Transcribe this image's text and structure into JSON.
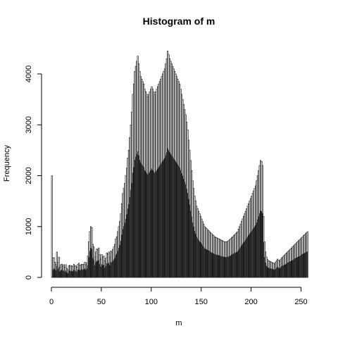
{
  "chart_data": {
    "type": "bar",
    "title": "Histogram of m",
    "xlabel": "m",
    "ylabel": "Frequency",
    "xlim": [
      0,
      256
    ],
    "ylim": [
      0,
      4500
    ],
    "bin_width": 1,
    "x_ticks": [
      0,
      50,
      100,
      150,
      200,
      250
    ],
    "y_ticks": [
      0,
      1000,
      2000,
      3000,
      4000
    ],
    "values_white": [
      2000,
      380,
      390,
      300,
      260,
      500,
      300,
      400,
      200,
      250,
      260,
      230,
      250,
      200,
      250,
      180,
      150,
      230,
      240,
      220,
      230,
      210,
      260,
      230,
      230,
      200,
      260,
      280,
      240,
      250,
      260,
      250,
      260,
      300,
      250,
      290,
      420,
      700,
      900,
      1000,
      980,
      650,
      600,
      400,
      500,
      560,
      550,
      580,
      450,
      360,
      450,
      400,
      420,
      330,
      380,
      480,
      460,
      500,
      400,
      520,
      500,
      550,
      600,
      650,
      760,
      800,
      900,
      1000,
      1100,
      1250,
      1450,
      1650,
      1750,
      1850,
      2000,
      2150,
      2350,
      2500,
      2750,
      3000,
      3250,
      3600,
      3800,
      4050,
      4150,
      4250,
      4350,
      4200,
      4050,
      3950,
      3900,
      3850,
      3800,
      3700,
      3650,
      3600,
      3550,
      3600,
      3650,
      3700,
      3750,
      3700,
      3650,
      3600,
      3650,
      3700,
      3750,
      3800,
      3850,
      3900,
      3950,
      4000,
      4050,
      4100,
      4200,
      4300,
      4450,
      4380,
      4300,
      4250,
      4200,
      4150,
      4100,
      4050,
      4000,
      3950,
      3900,
      3850,
      3800,
      3700,
      3600,
      3500,
      3400,
      3300,
      3200,
      3050,
      2900,
      2700,
      2500,
      2300,
      2100,
      1900,
      1750,
      1600,
      1500,
      1400,
      1350,
      1300,
      1250,
      1200,
      1150,
      1100,
      1050,
      1000,
      980,
      960,
      940,
      920,
      900,
      880,
      860,
      840,
      820,
      800,
      790,
      780,
      770,
      760,
      750,
      740,
      730,
      720,
      710,
      700,
      700,
      700,
      710,
      720,
      740,
      760,
      780,
      800,
      820,
      840,
      860,
      880,
      900,
      950,
      1000,
      1050,
      1100,
      1150,
      1200,
      1250,
      1300,
      1350,
      1400,
      1450,
      1500,
      1550,
      1600,
      1650,
      1700,
      1750,
      1800,
      1900,
      2000,
      2100,
      2200,
      2300,
      2280,
      2200,
      1200,
      700,
      500,
      400,
      350,
      330,
      320,
      310,
      300,
      290,
      280,
      270,
      300,
      330,
      360,
      340,
      320,
      350,
      380,
      400,
      420,
      440,
      460,
      480,
      500,
      520,
      540,
      560,
      580,
      600,
      620,
      640,
      660,
      680,
      700,
      720,
      740,
      760,
      780,
      800,
      820,
      840,
      860,
      880,
      900
    ],
    "values_gray": [
      0,
      150,
      180,
      160,
      140,
      230,
      160,
      200,
      120,
      140,
      150,
      130,
      140,
      110,
      140,
      100,
      80,
      130,
      140,
      120,
      130,
      120,
      150,
      130,
      130,
      110,
      150,
      160,
      140,
      150,
      160,
      150,
      160,
      180,
      150,
      170,
      240,
      400,
      520,
      580,
      560,
      380,
      350,
      240,
      300,
      330,
      320,
      340,
      260,
      210,
      260,
      240,
      250,
      190,
      220,
      280,
      270,
      290,
      240,
      300,
      300,
      320,
      350,
      380,
      440,
      470,
      520,
      580,
      640,
      720,
      840,
      950,
      1010,
      1070,
      1150,
      1240,
      1350,
      1440,
      1580,
      1720,
      1860,
      2060,
      2170,
      2310,
      2370,
      2420,
      2480,
      2400,
      2310,
      2260,
      2230,
      2200,
      2170,
      2110,
      2080,
      2050,
      2020,
      2050,
      2080,
      2110,
      2140,
      2110,
      2080,
      2050,
      2080,
      2110,
      2140,
      2170,
      2200,
      2230,
      2260,
      2290,
      2320,
      2350,
      2400,
      2460,
      2540,
      2500,
      2460,
      2430,
      2400,
      2370,
      2340,
      2310,
      2280,
      2250,
      2220,
      2190,
      2160,
      2110,
      2050,
      2000,
      1940,
      1880,
      1830,
      1740,
      1660,
      1540,
      1430,
      1310,
      1200,
      1080,
      1000,
      910,
      860,
      800,
      770,
      740,
      710,
      690,
      660,
      630,
      600,
      570,
      560,
      550,
      540,
      530,
      520,
      500,
      490,
      480,
      470,
      460,
      450,
      450,
      440,
      440,
      430,
      420,
      420,
      410,
      410,
      400,
      400,
      400,
      410,
      410,
      420,
      430,
      450,
      460,
      470,
      480,
      490,
      500,
      510,
      540,
      570,
      600,
      630,
      660,
      690,
      710,
      740,
      770,
      800,
      830,
      860,
      890,
      910,
      940,
      970,
      1000,
      1030,
      1080,
      1140,
      1200,
      1260,
      1310,
      1300,
      1260,
      690,
      400,
      290,
      230,
      200,
      190,
      180,
      180,
      170,
      170,
      160,
      150,
      170,
      190,
      210,
      190,
      180,
      200,
      220,
      230,
      240,
      250,
      260,
      270,
      290,
      300,
      310,
      320,
      330,
      340,
      350,
      370,
      380,
      390,
      400,
      410,
      420,
      430,
      450,
      460,
      470,
      480,
      490,
      500,
      510
    ]
  }
}
